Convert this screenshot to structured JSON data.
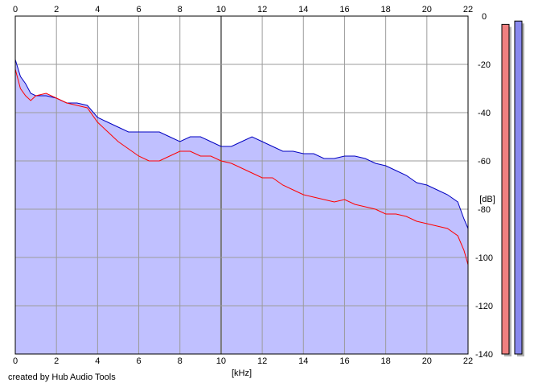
{
  "footer": {
    "credit": "created by Hub Audio Tools"
  },
  "colors": {
    "background": "#ffffff",
    "fill": "#c0c0ff",
    "grid": "#9b9b9b",
    "axis": "#000000",
    "left_channel": "#ff0000",
    "right_channel": "#0000c0",
    "left_meter": "#f08080",
    "right_meter": "#8888ee"
  },
  "chart_data": {
    "type": "line",
    "xlabel": "[kHz]",
    "ylabel": "[dB]",
    "xlim": [
      0,
      22
    ],
    "ylim": [
      -140,
      0
    ],
    "x_ticks": [
      "0",
      "2",
      "4",
      "6",
      "8",
      "10",
      "12",
      "14",
      "16",
      "18",
      "20",
      "22"
    ],
    "y_ticks": [
      "0",
      "-20",
      "-40",
      "-60",
      "-80",
      "-100",
      "-120",
      "-140"
    ],
    "grid": true,
    "x_ticks_top_and_bottom": true,
    "y_ticks_position": "right",
    "series": [
      {
        "color": "#0000c0",
        "x": [
          0,
          0.25,
          0.5,
          0.75,
          1,
          1.5,
          2,
          2.5,
          3,
          3.5,
          4,
          4.5,
          5,
          5.5,
          6,
          6.5,
          7,
          7.5,
          8,
          8.5,
          9,
          9.5,
          10,
          10.5,
          11,
          11.5,
          12,
          12.5,
          13,
          13.5,
          14,
          14.5,
          15,
          15.5,
          16,
          16.5,
          17,
          17.5,
          18,
          18.5,
          19,
          19.5,
          20,
          20.5,
          21,
          21.5,
          21.8,
          22
        ],
        "y": [
          -18,
          -25,
          -28,
          -32,
          -33,
          -33,
          -34,
          -36,
          -36,
          -37,
          -42,
          -44,
          -46,
          -48,
          -48,
          -48,
          -48,
          -50,
          -52,
          -50,
          -50,
          -52,
          -54,
          -54,
          -52,
          -50,
          -52,
          -54,
          -56,
          -56,
          -57,
          -57,
          -59,
          -59,
          -58,
          -58,
          -59,
          -61,
          -62,
          -64,
          -66,
          -69,
          -70,
          -72,
          -74,
          -77,
          -84,
          -88
        ]
      },
      {
        "color": "#ff0000",
        "x": [
          0,
          0.25,
          0.5,
          0.75,
          1,
          1.5,
          2,
          2.5,
          3,
          3.5,
          4,
          4.5,
          5,
          5.5,
          6,
          6.5,
          7,
          7.5,
          8,
          8.5,
          9,
          9.5,
          10,
          10.5,
          11,
          11.5,
          12,
          12.5,
          13,
          13.5,
          14,
          14.5,
          15,
          15.5,
          16,
          16.5,
          17,
          17.5,
          18,
          18.5,
          19,
          19.5,
          20,
          20.5,
          21,
          21.5,
          21.8,
          22
        ],
        "y": [
          -22,
          -30,
          -33,
          -35,
          -33,
          -32,
          -34,
          -36,
          -37,
          -38,
          -44,
          -48,
          -52,
          -55,
          -58,
          -60,
          -60,
          -58,
          -56,
          -56,
          -58,
          -58,
          -60,
          -61,
          -63,
          -65,
          -67,
          -67,
          -70,
          -72,
          -74,
          -75,
          -76,
          -77,
          -76,
          -78,
          -79,
          -80,
          -82,
          -82,
          -83,
          -85,
          -86,
          -87,
          -88,
          -91,
          -97,
          -103
        ]
      }
    ],
    "meters": [
      {
        "color": "#f08080",
        "level": 0.98
      },
      {
        "color": "#8888ee",
        "level": 0.99
      }
    ]
  }
}
